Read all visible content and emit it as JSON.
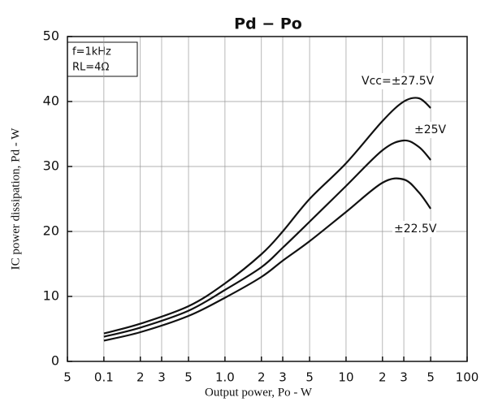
{
  "chart_data": {
    "type": "line",
    "title": "Pd − Po",
    "x_label": "Output power, Po - W",
    "y_label": "IC power dissipation, Pd - W",
    "annotations": [
      "f=1kHz",
      "RL=4Ω"
    ],
    "x": [
      0.1,
      0.2,
      0.5,
      1,
      2,
      3,
      5,
      10,
      20,
      30,
      40,
      50
    ],
    "series": [
      {
        "name": "Vcc=±27.5V",
        "color": "#111111",
        "values": [
          4.3,
          5.8,
          8.5,
          12,
          16.5,
          20,
          25,
          30.5,
          37,
          40,
          40.5,
          39
        ]
      },
      {
        "name": "±25V",
        "color": "#111111",
        "values": [
          3.8,
          5.2,
          7.8,
          11,
          14.5,
          17.5,
          21.5,
          27,
          32.5,
          34,
          33,
          31
        ]
      },
      {
        "name": "±22.5V",
        "color": "#111111",
        "values": [
          3.2,
          4.5,
          7,
          9.8,
          13,
          15.5,
          18.5,
          23,
          27.5,
          28,
          26,
          23.5
        ]
      }
    ],
    "xscale": "log",
    "xlim": [
      0.05,
      100
    ],
    "xticks": [
      {
        "value": 0.05,
        "label": "5"
      },
      0.1,
      {
        "value": 0.2,
        "label": "2"
      },
      {
        "value": 0.3,
        "label": "3"
      },
      {
        "value": 0.5,
        "label": "5"
      },
      {
        "value": 1,
        "label": "1.0"
      },
      2,
      3,
      5,
      10,
      {
        "value": 20,
        "label": "2"
      },
      {
        "value": 30,
        "label": "3"
      },
      {
        "value": 50,
        "label": "5"
      },
      100
    ],
    "ylim": [
      0,
      50
    ],
    "yticks": [
      0,
      10,
      20,
      30,
      40,
      50
    ],
    "grid": true
  }
}
